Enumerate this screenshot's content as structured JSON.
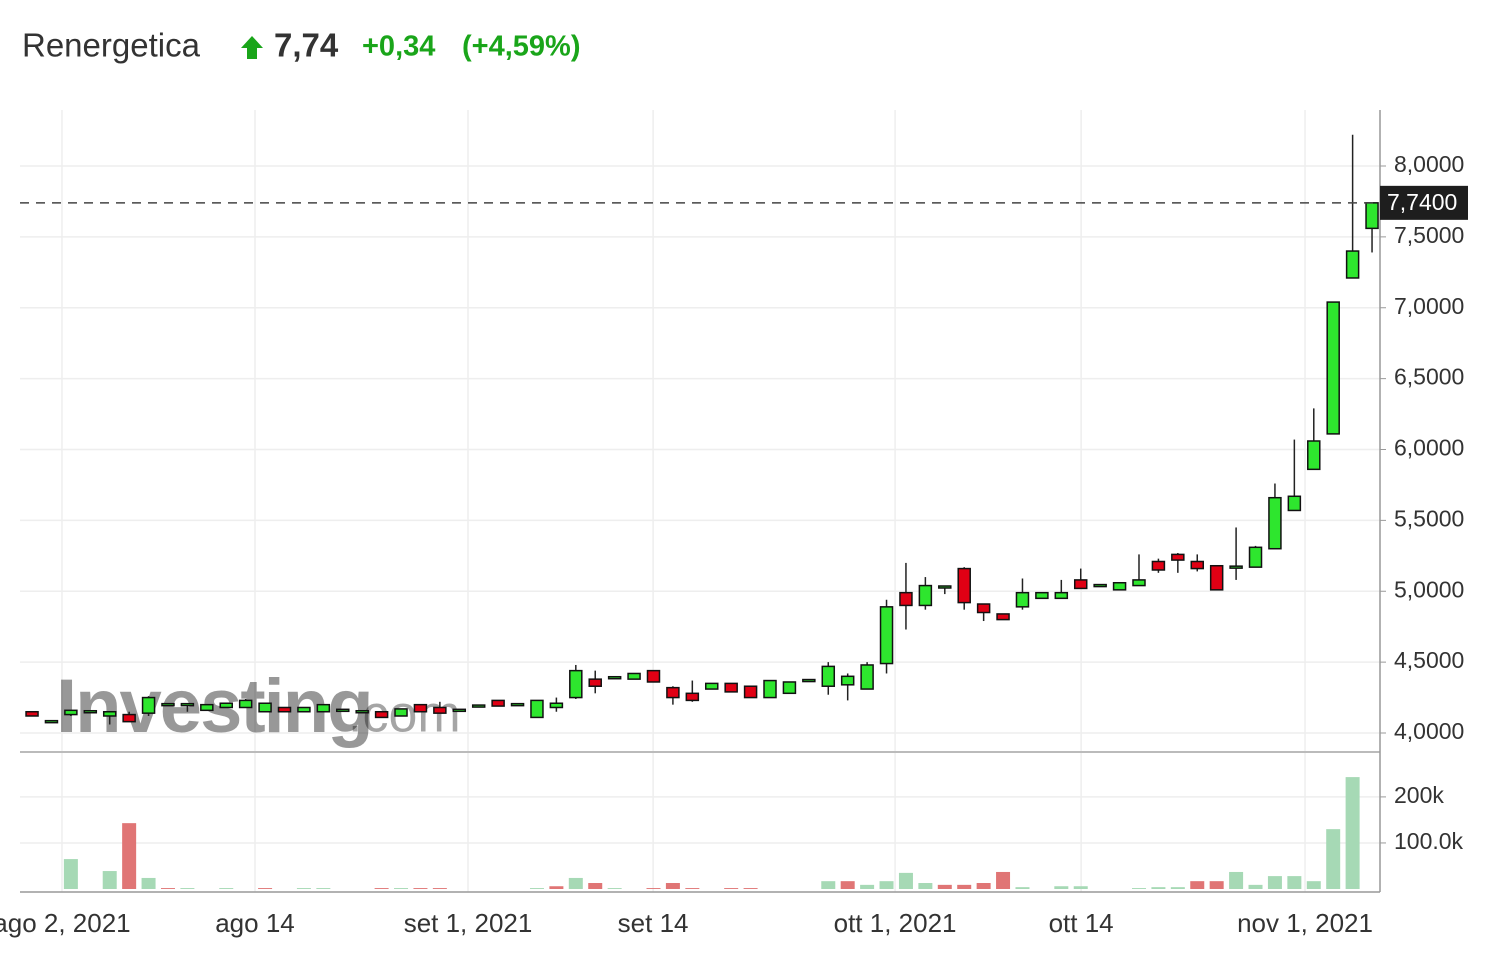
{
  "chart_data": {
    "type": "candlestick",
    "title": "Renergetica",
    "last": "7,74",
    "change": "+0,34",
    "change_pct": "(+4,59%)",
    "watermark": "Investing",
    "watermark_suffix": ".com",
    "up_color": "#2ee62e",
    "down_color": "#e00014",
    "volume_up_color": "#a6d9b5",
    "volume_down_color": "#e07575",
    "grid": true,
    "open": [
      4.15,
      4.08,
      4.13,
      4.15,
      4.12,
      4.13,
      4.14,
      4.2,
      4.2,
      4.16,
      4.18,
      4.18,
      4.15,
      4.18,
      4.15,
      4.15,
      4.16,
      4.15,
      4.15,
      4.12,
      4.2,
      4.18,
      4.16,
      4.19,
      4.23,
      4.2,
      4.11,
      4.18,
      4.25,
      4.38,
      4.39,
      4.38,
      4.44,
      4.32,
      4.28,
      4.31,
      4.35,
      4.33,
      4.25,
      4.28,
      4.37,
      4.33,
      4.34,
      4.31,
      4.49,
      4.99,
      4.9,
      5.02,
      5.16,
      4.91,
      4.84,
      4.89,
      4.95,
      4.95,
      5.08,
      5.04,
      5.01,
      5.04,
      5.21,
      5.26,
      5.21,
      5.18,
      5.17,
      5.17,
      5.3,
      5.57,
      5.86,
      6.11,
      7.21,
      7.56
    ],
    "high": [
      4.15,
      4.08,
      4.16,
      4.15,
      4.15,
      4.15,
      4.26,
      4.2,
      4.21,
      4.2,
      4.21,
      4.24,
      4.21,
      4.18,
      4.18,
      4.2,
      4.16,
      4.15,
      4.15,
      4.17,
      4.2,
      4.22,
      4.16,
      4.19,
      4.23,
      4.2,
      4.23,
      4.25,
      4.48,
      4.44,
      4.39,
      4.42,
      4.44,
      4.33,
      4.37,
      4.35,
      4.35,
      4.33,
      4.37,
      4.36,
      4.37,
      4.5,
      4.42,
      4.5,
      4.94,
      5.2,
      5.1,
      5.04,
      5.17,
      4.91,
      4.84,
      5.09,
      4.99,
      5.08,
      5.16,
      5.04,
      5.06,
      5.26,
      5.23,
      5.27,
      5.26,
      5.18,
      5.45,
      5.32,
      5.76,
      6.07,
      6.29,
      7.04,
      8.22,
      7.74
    ],
    "low": [
      4.12,
      4.08,
      4.12,
      4.15,
      4.06,
      4.08,
      4.12,
      4.2,
      4.15,
      4.16,
      4.18,
      4.18,
      4.15,
      4.15,
      4.15,
      4.15,
      4.16,
      4.15,
      4.11,
      4.12,
      4.15,
      4.14,
      4.16,
      4.19,
      4.19,
      4.2,
      4.11,
      4.15,
      4.24,
      4.28,
      4.39,
      4.38,
      4.36,
      4.2,
      4.22,
      4.31,
      4.29,
      4.25,
      4.25,
      4.28,
      4.37,
      4.27,
      4.23,
      4.31,
      4.42,
      4.73,
      4.87,
      4.98,
      4.87,
      4.79,
      4.8,
      4.87,
      4.95,
      4.95,
      5.02,
      5.04,
      5.01,
      5.04,
      5.13,
      5.13,
      5.14,
      5.01,
      5.08,
      5.17,
      5.3,
      5.57,
      5.86,
      6.11,
      7.21,
      7.39
    ],
    "close": [
      4.12,
      4.08,
      4.16,
      4.15,
      4.15,
      4.08,
      4.25,
      4.2,
      4.2,
      4.2,
      4.21,
      4.23,
      4.21,
      4.15,
      4.18,
      4.2,
      4.16,
      4.15,
      4.11,
      4.17,
      4.15,
      4.14,
      4.16,
      4.19,
      4.19,
      4.2,
      4.23,
      4.21,
      4.44,
      4.33,
      4.39,
      4.42,
      4.36,
      4.25,
      4.23,
      4.35,
      4.29,
      4.25,
      4.37,
      4.36,
      4.37,
      4.47,
      4.4,
      4.48,
      4.89,
      4.9,
      5.04,
      5.03,
      4.92,
      4.85,
      4.8,
      4.99,
      4.99,
      4.99,
      5.02,
      5.04,
      5.06,
      5.08,
      5.15,
      5.22,
      5.16,
      5.01,
      5.17,
      5.31,
      5.66,
      5.67,
      6.06,
      7.04,
      7.4,
      7.74
    ],
    "volume": [
      0,
      0,
      65000,
      0,
      39000,
      143000,
      24000,
      2000,
      2000,
      0,
      2000,
      0,
      2000,
      0,
      2000,
      2000,
      0,
      0,
      2000,
      2000,
      2000,
      2000,
      0,
      0,
      0,
      0,
      2000,
      6000,
      24000,
      13000,
      2000,
      0,
      2000,
      13000,
      2000,
      0,
      2000,
      2000,
      0,
      0,
      0,
      17000,
      17000,
      9000,
      17000,
      35000,
      13000,
      9000,
      9000,
      13000,
      37000,
      4000,
      0,
      6000,
      6000,
      0,
      0,
      2000,
      4000,
      4000,
      17000,
      17000,
      37000,
      9000,
      28000,
      28000,
      17000,
      130000,
      243000,
      0
    ],
    "last_price": {
      "value": 7.74,
      "label": "7,7400"
    },
    "xlim": [
      -0.62,
      69.41
    ],
    "xticks": [
      {
        "value": 1.54,
        "label": "ago 2, 2021"
      },
      {
        "value": 11.48,
        "label": "ago 14"
      },
      {
        "value": 22.45,
        "label": "set 1, 2021"
      },
      {
        "value": 31.98,
        "label": "set 14"
      },
      {
        "value": 44.44,
        "label": "ott 1, 2021"
      },
      {
        "value": 54.02,
        "label": "ott 14"
      },
      {
        "value": 65.55,
        "label": "nov 1, 2021"
      }
    ],
    "ylim": [
      3.866,
      8.395
    ],
    "yticks": [
      {
        "value": 4,
        "label": "4,0000"
      },
      {
        "value": 4.5,
        "label": "4,5000"
      },
      {
        "value": 5,
        "label": "5,0000"
      },
      {
        "value": 5.5,
        "label": "5,5000"
      },
      {
        "value": 6,
        "label": "6,0000"
      },
      {
        "value": 6.5,
        "label": "6,5000"
      },
      {
        "value": 7,
        "label": "7,0000"
      },
      {
        "value": 7.5,
        "label": "7,5000"
      },
      {
        "value": 8,
        "label": "8,0000"
      }
    ],
    "vlim": [
      0,
      291000
    ],
    "vticks": [
      {
        "value": 100000,
        "label": "100.0k"
      },
      {
        "value": 200000,
        "label": "200k"
      }
    ]
  }
}
